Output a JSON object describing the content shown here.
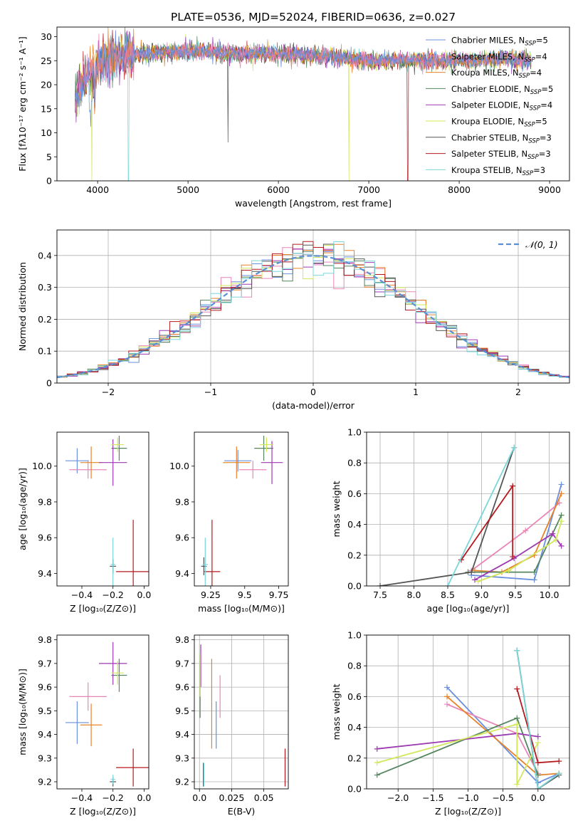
{
  "figure": {
    "title": "PLATE=0536, MJD=52024, FIBERID=0636, z=0.027"
  },
  "colors": {
    "Chabrier MILES": "#6a8fdc",
    "Salpeter MILES": "#e986b8",
    "Kroupa MILES": "#e8822a",
    "Chabrier ELODIE": "#55865f",
    "Salpeter ELODIE": "#9d39b2",
    "Kroupa ELODIE": "#d1e85a",
    "Chabrier STELIB": "#555555",
    "Salpeter STELIB": "#b5191e",
    "Kroupa STELIB": "#7bd6da",
    "gauss": "#5b8fd5"
  },
  "chart_data": [
    {
      "id": "spectrum",
      "type": "line",
      "title": "PLATE=0536, MJD=52024, FIBERID=0636, z=0.027",
      "xlabel": "wavelength [Angstrom, rest frame]",
      "ylabel": "Flux [fλ10⁻¹⁷ erg cm⁻² s⁻¹ A⁻¹]",
      "xlim": [
        3550,
        9220
      ],
      "ylim": [
        0,
        32
      ],
      "xticks": [
        4000,
        5000,
        6000,
        7000,
        8000,
        9000
      ],
      "yticks": [
        0,
        5,
        10,
        15,
        20,
        25,
        30
      ],
      "legend_position": "top-right",
      "series": [
        {
          "name": "Chabrier MILES, N_SSP=5",
          "label_main": "Chabrier MILES, N",
          "label_sub": "SSP",
          "label_end": "=5",
          "color_key": "Chabrier MILES"
        },
        {
          "name": "Salpeter MILES, N_SSP=4",
          "label_main": "Salpeter MILES, N",
          "label_sub": "SSP",
          "label_end": "=4",
          "color_key": "Salpeter MILES"
        },
        {
          "name": "Kroupa MILES, N_SSP=4",
          "label_main": "Kroupa MILES, N",
          "label_sub": "SSP",
          "label_end": "=4",
          "color_key": "Kroupa MILES"
        },
        {
          "name": "Chabrier ELODIE, N_SSP=5",
          "label_main": "Chabrier ELODIE, N",
          "label_sub": "SSP",
          "label_end": "=5",
          "color_key": "Chabrier ELODIE"
        },
        {
          "name": "Salpeter ELODIE, N_SSP=4",
          "label_main": "Salpeter ELODIE, N",
          "label_sub": "SSP",
          "label_end": "=4",
          "color_key": "Salpeter ELODIE"
        },
        {
          "name": "Kroupa ELODIE, N_SSP=5",
          "label_main": "Kroupa ELODIE, N",
          "label_sub": "SSP",
          "label_end": "=5",
          "color_key": "Kroupa ELODIE"
        },
        {
          "name": "Chabrier STELIB, N_SSP=3",
          "label_main": "Chabrier STELIB, N",
          "label_sub": "SSP",
          "label_end": "=3",
          "color_key": "Chabrier STELIB"
        },
        {
          "name": "Salpeter STELIB, N_SSP=3",
          "label_main": "Salpeter STELIB, N",
          "label_sub": "SSP",
          "label_end": "=3",
          "color_key": "Salpeter STELIB"
        },
        {
          "name": "Kroupa STELIB, N_SSP=3",
          "label_main": "Kroupa STELIB, N",
          "label_sub": "SSP",
          "label_end": "=3",
          "color_key": "Kroupa STELIB"
        }
      ],
      "continuum": [
        [
          3750,
          18
        ],
        [
          3850,
          21
        ],
        [
          4000,
          24.5
        ],
        [
          4200,
          26
        ],
        [
          4500,
          26.5
        ],
        [
          5000,
          27
        ],
        [
          5500,
          26.5
        ],
        [
          6000,
          26.5
        ],
        [
          6500,
          26
        ],
        [
          7000,
          25
        ],
        [
          7500,
          25
        ],
        [
          8000,
          25
        ],
        [
          8500,
          25.5
        ],
        [
          8800,
          25
        ]
      ],
      "dips": [
        {
          "x": 3934,
          "y": 0,
          "series": "Kroupa ELODIE"
        },
        {
          "x": 4340,
          "y": 0,
          "series": "Kroupa STELIB"
        },
        {
          "x": 6780,
          "y": 0,
          "series": "Kroupa ELODIE"
        },
        {
          "x": 7430,
          "y": 0,
          "series": "Salpeter STELIB"
        }
      ]
    },
    {
      "id": "residuals",
      "type": "histogram",
      "xlabel": "(data-model)/error",
      "ylabel": "Normed distribution",
      "xlim": [
        -2.5,
        2.5
      ],
      "ylim": [
        0,
        0.48
      ],
      "xticks": [
        -2,
        -1,
        0,
        1,
        2
      ],
      "yticks": [
        0.0,
        0.1,
        0.2,
        0.3,
        0.4
      ],
      "legend": {
        "label_main": "𝒩(0, 1)",
        "style": "dashed",
        "position": "top-right"
      },
      "bin_width": 0.1,
      "reference": {
        "type": "normal",
        "mean": 0,
        "sigma": 1
      }
    },
    {
      "id": "age_vs_Z",
      "type": "errorbar",
      "xlabel": "Z [log₁₀(Z/Z⊙)]",
      "ylabel": "age  [log₁₀(age/yr)]",
      "xlim": [
        -0.56,
        0.03
      ],
      "ylim": [
        9.33,
        10.19
      ],
      "xticks": [
        -0.4,
        -0.2,
        0.0
      ],
      "yticks": [
        9.4,
        9.6,
        9.8,
        10.0
      ],
      "points": [
        {
          "s": "Chabrier MILES",
          "x": -0.43,
          "xe": 0.075,
          "y": 10.03,
          "ye": 0.07
        },
        {
          "s": "Salpeter MILES",
          "x": -0.36,
          "xe": 0.12,
          "y": 9.98,
          "ye": 0.05
        },
        {
          "s": "Kroupa MILES",
          "x": -0.34,
          "xe": 0.07,
          "y": 10.02,
          "ye": 0.09
        },
        {
          "s": "Chabrier ELODIE",
          "x": -0.16,
          "xe": 0.05,
          "y": 10.1,
          "ye": 0.07
        },
        {
          "s": "Salpeter ELODIE",
          "x": -0.2,
          "xe": 0.09,
          "y": 10.02,
          "ye": 0.13
        },
        {
          "s": "Kroupa ELODIE",
          "x": -0.17,
          "xe": 0.04,
          "y": 10.12,
          "ye": 0.04
        },
        {
          "s": "Chabrier STELIB",
          "x": -0.2,
          "xe": 0.02,
          "y": 9.44,
          "ye": 0.04
        },
        {
          "s": "Salpeter STELIB",
          "x": -0.07,
          "xe": 0.11,
          "y": 9.41,
          "ye": 0.29
        },
        {
          "s": "Kroupa STELIB",
          "x": -0.2,
          "xe": 0.015,
          "y": 9.45,
          "ye": 0.15
        }
      ]
    },
    {
      "id": "age_vs_mass",
      "type": "errorbar",
      "xlabel": "mass [log₁₀(M/M⊙)]",
      "ylabel": "",
      "xlim": [
        9.13,
        9.82
      ],
      "ylim": [
        9.33,
        10.19
      ],
      "xticks": [
        9.25,
        9.5,
        9.75
      ],
      "yticks": [
        9.4,
        9.6,
        9.8,
        10.0
      ],
      "points": [
        {
          "s": "Chabrier MILES",
          "x": 9.45,
          "xe": 0.1,
          "y": 10.03,
          "ye": 0.06
        },
        {
          "s": "Salpeter MILES",
          "x": 9.56,
          "xe": 0.1,
          "y": 9.98,
          "ye": 0.05
        },
        {
          "s": "Kroupa MILES",
          "x": 9.44,
          "xe": 0.1,
          "y": 10.02,
          "ye": 0.09
        },
        {
          "s": "Chabrier ELODIE",
          "x": 9.64,
          "xe": 0.07,
          "y": 10.1,
          "ye": 0.07
        },
        {
          "s": "Salpeter ELODIE",
          "x": 9.7,
          "xe": 0.08,
          "y": 10.02,
          "ye": 0.12
        },
        {
          "s": "Kroupa ELODIE",
          "x": 9.66,
          "xe": 0.05,
          "y": 10.12,
          "ye": 0.04
        },
        {
          "s": "Chabrier STELIB",
          "x": 9.2,
          "xe": 0.02,
          "y": 9.44,
          "ye": 0.05
        },
        {
          "s": "Salpeter STELIB",
          "x": 9.26,
          "xe": 0.06,
          "y": 9.41,
          "ye": 0.29
        },
        {
          "s": "Kroupa STELIB",
          "x": 9.21,
          "xe": 0.02,
          "y": 9.45,
          "ye": 0.15
        }
      ]
    },
    {
      "id": "weight_vs_age",
      "type": "line",
      "xlabel": "age  [log₁₀(age/yr)]",
      "ylabel": "mass weight",
      "xlim": [
        7.3,
        10.3
      ],
      "ylim": [
        0,
        1.0
      ],
      "xticks": [
        7.5,
        8.0,
        8.5,
        9.0,
        9.5,
        10.0
      ],
      "yticks": [
        0.0,
        0.2,
        0.4,
        0.6,
        0.8,
        1.0
      ],
      "series": [
        {
          "s": "Chabrier MILES",
          "x": [
            8.85,
            9.78,
            10.18
          ],
          "y": [
            0.07,
            0.04,
            0.66
          ]
        },
        {
          "s": "Salpeter MILES",
          "x": [
            8.85,
            9.65,
            10.15
          ],
          "y": [
            0.1,
            0.36,
            0.54
          ]
        },
        {
          "s": "Kroupa MILES",
          "x": [
            8.9,
            9.3,
            9.78,
            10.18
          ],
          "y": [
            0.1,
            0.09,
            0.2,
            0.6
          ]
        },
        {
          "s": "Chabrier ELODIE",
          "x": [
            8.8,
            9.78,
            10.18
          ],
          "y": [
            0.09,
            0.09,
            0.46
          ]
        },
        {
          "s": "Salpeter ELODIE",
          "x": [
            8.9,
            9.48,
            10.05,
            10.18
          ],
          "y": [
            0.04,
            0.18,
            0.34,
            0.26
          ]
        },
        {
          "s": "Kroupa ELODIE",
          "x": [
            8.95,
            9.4,
            10.1,
            10.18
          ],
          "y": [
            0.03,
            0.1,
            0.3,
            0.42
          ]
        },
        {
          "s": "Chabrier STELIB",
          "x": [
            7.5,
            8.85,
            9.48
          ],
          "y": [
            0.0,
            0.09,
            0.9
          ]
        },
        {
          "s": "Salpeter STELIB",
          "x": [
            8.7,
            9.46,
            9.46
          ],
          "y": [
            0.17,
            0.65,
            0.19
          ]
        },
        {
          "s": "Kroupa STELIB",
          "x": [
            8.5,
            9.48
          ],
          "y": [
            0.0,
            0.9
          ]
        }
      ]
    },
    {
      "id": "mass_vs_Z",
      "type": "errorbar",
      "xlabel": "Z [log₁₀(Z/Z⊙)]",
      "ylabel": "mass [log₁₀(M/M⊙)]",
      "xlim": [
        -0.56,
        0.03
      ],
      "ylim": [
        9.17,
        9.82
      ],
      "xticks": [
        -0.4,
        -0.2,
        0.0
      ],
      "yticks": [
        9.2,
        9.3,
        9.4,
        9.5,
        9.6,
        9.7,
        9.8
      ],
      "points": [
        {
          "s": "Chabrier MILES",
          "x": -0.43,
          "xe": 0.075,
          "y": 9.45,
          "ye": 0.09
        },
        {
          "s": "Salpeter MILES",
          "x": -0.36,
          "xe": 0.12,
          "y": 9.56,
          "ye": 0.06
        },
        {
          "s": "Kroupa MILES",
          "x": -0.34,
          "xe": 0.07,
          "y": 9.44,
          "ye": 0.09
        },
        {
          "s": "Chabrier ELODIE",
          "x": -0.16,
          "xe": 0.05,
          "y": 9.65,
          "ye": 0.07
        },
        {
          "s": "Salpeter ELODIE",
          "x": -0.2,
          "xe": 0.09,
          "y": 9.7,
          "ye": 0.09
        },
        {
          "s": "Kroupa ELODIE",
          "x": -0.17,
          "xe": 0.04,
          "y": 9.66,
          "ye": 0.05
        },
        {
          "s": "Chabrier STELIB",
          "x": -0.2,
          "xe": 0.02,
          "y": 9.2,
          "ye": 0.02
        },
        {
          "s": "Salpeter STELIB",
          "x": -0.07,
          "xe": 0.11,
          "y": 9.26,
          "ye": 0.08
        },
        {
          "s": "Kroupa STELIB",
          "x": -0.2,
          "xe": 0.015,
          "y": 9.21,
          "ye": 0.02
        }
      ]
    },
    {
      "id": "mass_vs_EBV",
      "type": "errorbar",
      "xlabel": "E(B-V)",
      "ylabel": "",
      "xlim": [
        -0.004,
        0.069
      ],
      "ylim": [
        9.17,
        9.82
      ],
      "xticks": [
        0.0,
        0.025,
        0.05
      ],
      "yticks": [
        9.2,
        9.3,
        9.4,
        9.5,
        9.6,
        9.7,
        9.8
      ],
      "points": [
        {
          "s": "Chabrier MILES",
          "x": 0.013,
          "xe": 0.0,
          "y": 9.44,
          "ye": 0.1
        },
        {
          "s": "Salpeter MILES",
          "x": 0.016,
          "xe": 0.0,
          "y": 9.56,
          "ye": 0.09
        },
        {
          "s": "Kroupa MILES",
          "x": 0.0095,
          "xe": 0.0,
          "y": 9.53,
          "ye": 0.19
        },
        {
          "s": "Chabrier ELODIE",
          "x": 0.0005,
          "xe": 0.0,
          "y": 9.59,
          "ye": 0.12
        },
        {
          "s": "Salpeter ELODIE",
          "x": 0.001,
          "xe": 0.0,
          "y": 9.69,
          "ye": 0.09
        },
        {
          "s": "Kroupa ELODIE",
          "x": 0.0005,
          "xe": 0.0,
          "y": 9.65,
          "ye": 0.09
        },
        {
          "s": "Chabrier STELIB",
          "x": 0.003,
          "xe": 0.0,
          "y": 9.23,
          "ye": 0.05
        },
        {
          "s": "Salpeter STELIB",
          "x": 0.0665,
          "xe": 0.0,
          "y": 9.26,
          "ye": 0.08
        },
        {
          "s": "Kroupa STELIB",
          "x": 0.0035,
          "xe": 0.0,
          "y": 9.23,
          "ye": 0.05
        }
      ]
    },
    {
      "id": "weight_vs_Z",
      "type": "line",
      "xlabel": "Z [log₁₀(Z/Z⊙)]",
      "ylabel": "mass weight",
      "xlim": [
        -2.45,
        0.45
      ],
      "ylim": [
        0,
        1.0
      ],
      "xticks": [
        -2.0,
        -1.5,
        -1.0,
        -0.5,
        0.0
      ],
      "yticks": [
        0.0,
        0.2,
        0.4,
        0.6,
        0.8,
        1.0
      ],
      "series": [
        {
          "s": "Chabrier MILES",
          "x": [
            -1.3,
            0.0,
            0.3
          ],
          "y": [
            0.66,
            0.04,
            0.1
          ]
        },
        {
          "s": "Salpeter MILES",
          "x": [
            -1.3,
            -0.3,
            0.0
          ],
          "y": [
            0.55,
            0.36,
            0.1
          ]
        },
        {
          "s": "Kroupa MILES",
          "x": [
            -1.3,
            0.0,
            0.3
          ],
          "y": [
            0.6,
            0.09,
            0.1
          ]
        },
        {
          "s": "Chabrier ELODIE",
          "x": [
            -2.3,
            -0.3,
            0.0
          ],
          "y": [
            0.09,
            0.46,
            0.09
          ]
        },
        {
          "s": "Salpeter ELODIE",
          "x": [
            -2.3,
            -0.3,
            0.0
          ],
          "y": [
            0.26,
            0.36,
            0.34
          ]
        },
        {
          "s": "Kroupa ELODIE",
          "x": [
            -2.3,
            -0.3,
            -0.3,
            0.0
          ],
          "y": [
            0.17,
            0.42,
            0.03,
            0.3
          ]
        },
        {
          "s": "Chabrier STELIB",
          "x": [
            -0.3,
            0.0,
            0.3
          ],
          "y": [
            0.9,
            0.0,
            0.09
          ]
        },
        {
          "s": "Salpeter STELIB",
          "x": [
            -0.3,
            0.0,
            0.3
          ],
          "y": [
            0.65,
            0.17,
            0.18
          ]
        },
        {
          "s": "Kroupa STELIB",
          "x": [
            -0.3,
            0.0,
            0.3
          ],
          "y": [
            0.9,
            0.0,
            0.1
          ]
        }
      ]
    }
  ]
}
